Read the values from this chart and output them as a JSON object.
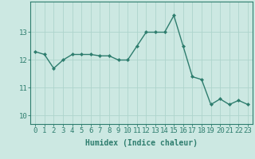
{
  "x": [
    0,
    1,
    2,
    3,
    4,
    5,
    6,
    7,
    8,
    9,
    10,
    11,
    12,
    13,
    14,
    15,
    16,
    17,
    18,
    19,
    20,
    21,
    22,
    23
  ],
  "y": [
    12.3,
    12.2,
    11.7,
    12.0,
    12.2,
    12.2,
    12.2,
    12.15,
    12.15,
    12.0,
    12.0,
    12.5,
    13.0,
    13.0,
    13.0,
    13.6,
    12.5,
    11.4,
    11.3,
    10.4,
    10.6,
    10.4,
    10.55,
    10.4
  ],
  "line_color": "#2e7d6e",
  "marker": "D",
  "marker_size": 2.0,
  "line_width": 1.0,
  "xlabel": "Humidex (Indice chaleur)",
  "ylim": [
    9.7,
    14.1
  ],
  "xlim": [
    -0.5,
    23.5
  ],
  "yticks": [
    10,
    11,
    12,
    13
  ],
  "xticks": [
    0,
    1,
    2,
    3,
    4,
    5,
    6,
    7,
    8,
    9,
    10,
    11,
    12,
    13,
    14,
    15,
    16,
    17,
    18,
    19,
    20,
    21,
    22,
    23
  ],
  "grid_color": "#aed4cc",
  "bg_color": "#cce8e2",
  "line_bg_color": "#cce8e2",
  "spine_color": "#2e7d6e",
  "label_color": "#2e7d6e",
  "xlabel_fontsize": 7,
  "tick_fontsize": 6.5
}
